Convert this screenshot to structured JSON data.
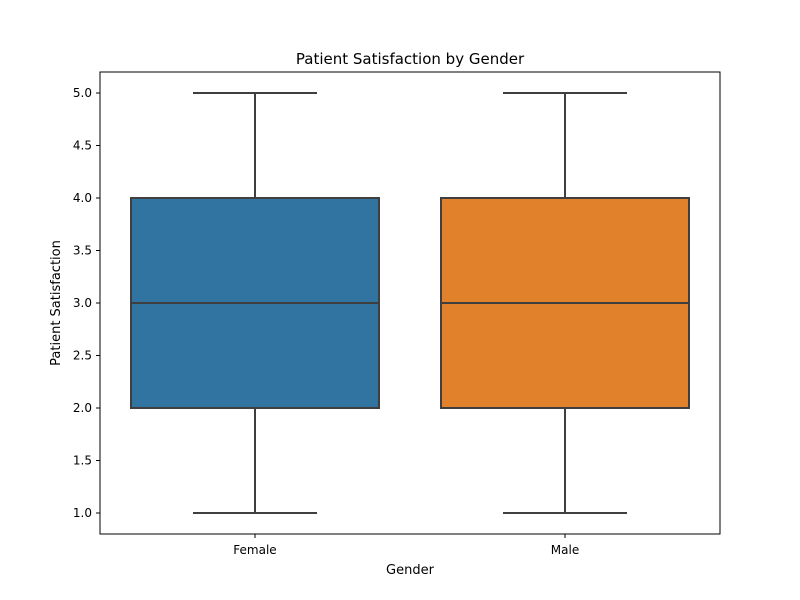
{
  "chart_data": {
    "type": "box",
    "title": "Patient Satisfaction by Gender",
    "xlabel": "Gender",
    "ylabel": "Patient Satisfaction",
    "ylim": [
      0.8,
      5.2
    ],
    "yticks": [
      "1.0",
      "1.5",
      "2.0",
      "2.5",
      "3.0",
      "3.5",
      "4.0",
      "4.5",
      "5.0"
    ],
    "categories": [
      "Female",
      "Male"
    ],
    "boxes": [
      {
        "category": "Female",
        "min": 1.0,
        "q1": 2.0,
        "median": 3.0,
        "q3": 4.0,
        "max": 5.0,
        "color": "#3274a1"
      },
      {
        "category": "Male",
        "min": 1.0,
        "q1": 2.0,
        "median": 3.0,
        "q3": 4.0,
        "max": 5.0,
        "color": "#e1812c"
      }
    ],
    "grid": false,
    "line_color": "#3f3f3f"
  }
}
